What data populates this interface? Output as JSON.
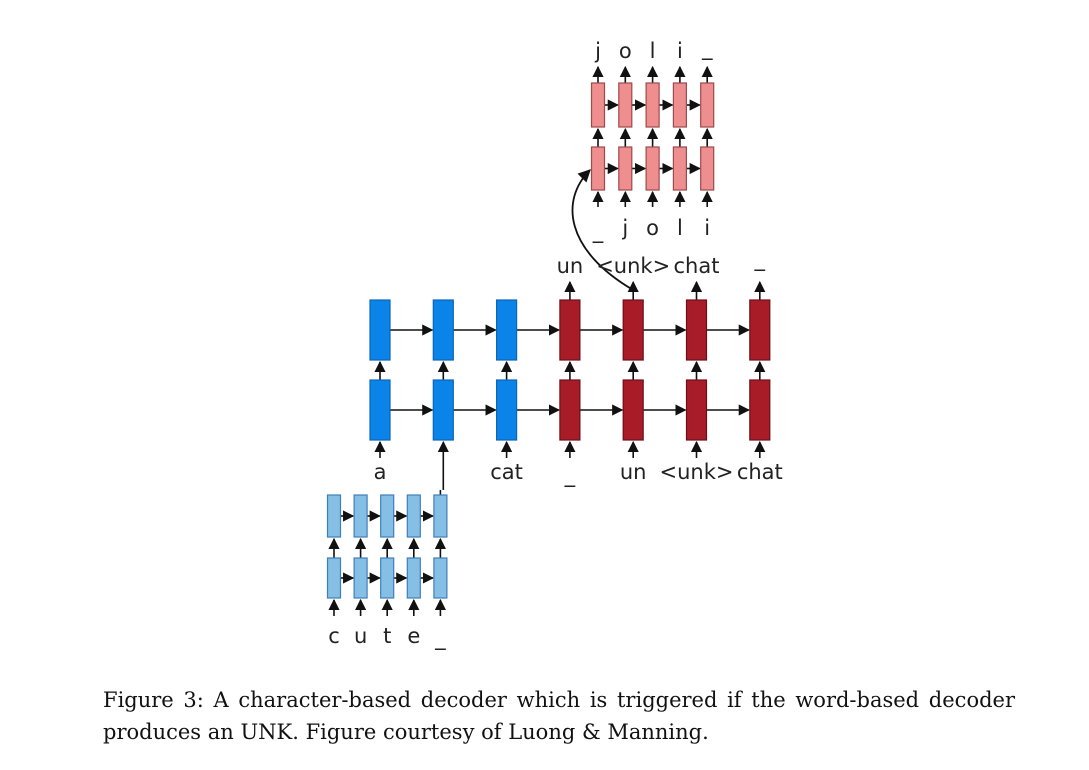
{
  "colors": {
    "encoder": "#0a84e8",
    "encoder_stroke": "#0a64b8",
    "decoder": "#a81c28",
    "decoder_stroke": "#6e0f18",
    "char_encoder": "#86bfe6",
    "char_encoder_stroke": "#3f7fb8",
    "char_decoder": "#ee8e8e",
    "char_decoder_stroke": "#9d4a4a",
    "line": "#111111"
  },
  "char_decoder": {
    "outputs": [
      "j",
      "o",
      "l",
      "i",
      "_"
    ],
    "inputs": [
      "_",
      "j",
      "o",
      "l",
      "i"
    ]
  },
  "char_encoder": {
    "inputs": [
      "c",
      "u",
      "t",
      "e",
      "_"
    ]
  },
  "word_model": {
    "input_labels": [
      "a",
      "",
      "cat",
      "_",
      "un",
      "<unk>",
      "chat"
    ],
    "output_labels": [
      "",
      "",
      "",
      "un",
      "<unk>",
      "chat",
      "_"
    ],
    "encoder_count": 3,
    "decoder_count": 4
  },
  "caption": {
    "figure_label": "Figure 3:",
    "text": "A character-based decoder which is triggered if the word-based decoder produces an UNK. Figure courtesy of Luong & Manning."
  }
}
